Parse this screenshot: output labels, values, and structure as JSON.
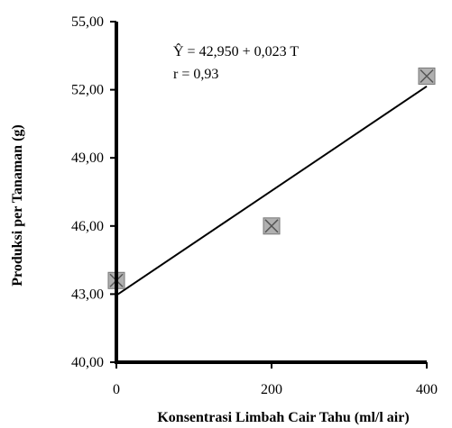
{
  "chart_data": {
    "type": "scatter",
    "xlabel": "Konsentrasi Limbah Cair Tahu (ml/l air)",
    "ylabel": "Produksi per Tanaman (g)",
    "xlim": [
      0,
      400
    ],
    "ylim": [
      40,
      55
    ],
    "x_ticks": [
      0,
      200,
      400
    ],
    "x_tick_labels": [
      "0",
      "200",
      "400"
    ],
    "y_ticks": [
      40,
      43,
      46,
      49,
      52,
      55
    ],
    "y_tick_labels": [
      "40,00",
      "43,00",
      "46,00",
      "49,00",
      "52,00",
      "55,00"
    ],
    "grid": false,
    "series": [
      {
        "x": [
          0,
          200,
          400
        ],
        "values": [
          43.6,
          46.0,
          52.6
        ],
        "marker": "square-cross",
        "color": "#b0b0b0"
      }
    ],
    "trendline": {
      "intercept": 42.95,
      "slope": 0.023,
      "x_range": [
        0,
        400
      ],
      "color": "#000000"
    },
    "annotations": {
      "equation": "Ŷ  = 42,950 + 0,023 T",
      "r": "r  = 0,93"
    }
  }
}
